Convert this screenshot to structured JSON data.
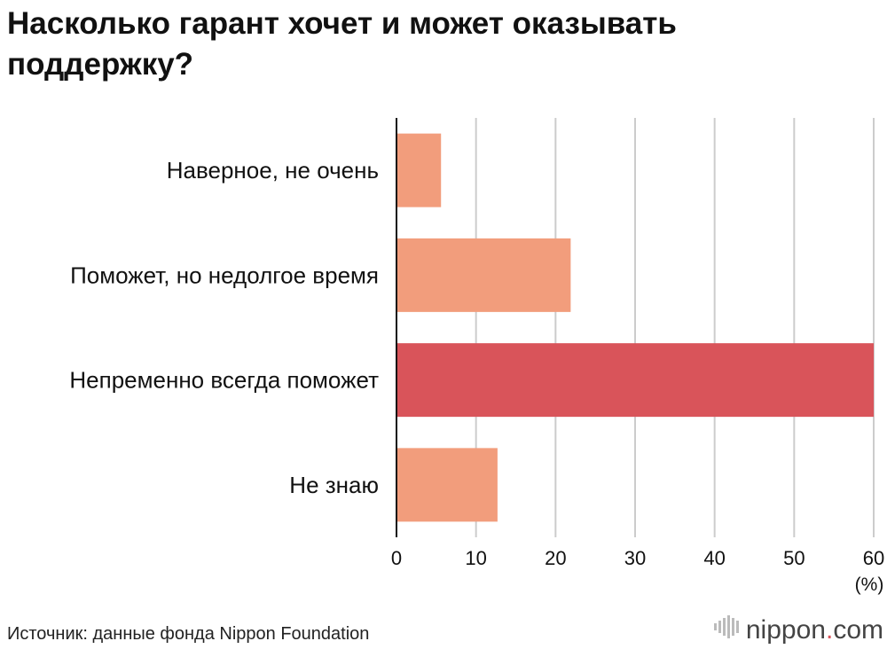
{
  "title": "Насколько гарант хочет и может оказывать поддержку?",
  "source": "Источник: данные фонда Nippon Foundation",
  "brand": {
    "name": "nippon",
    "dot": ".",
    "tld": "com",
    "icon": "nippon-logo-icon"
  },
  "colors": {
    "bar": "#f29d7c",
    "highlight": "#d9545a",
    "grid": "#cccccc",
    "axis": "#111111"
  },
  "chart_data": {
    "type": "bar",
    "orientation": "horizontal",
    "categories": [
      "Наверное, не очень",
      "Поможет, но недолгое время",
      "Непременно всегда поможет",
      "Не знаю"
    ],
    "values": [
      5.6,
      21.9,
      60.0,
      12.7
    ],
    "highlight_index": 2,
    "xlim": [
      0,
      60
    ],
    "xticks": [
      0,
      10,
      20,
      30,
      40,
      50,
      60
    ],
    "xunit": "(%)",
    "grid": true
  }
}
